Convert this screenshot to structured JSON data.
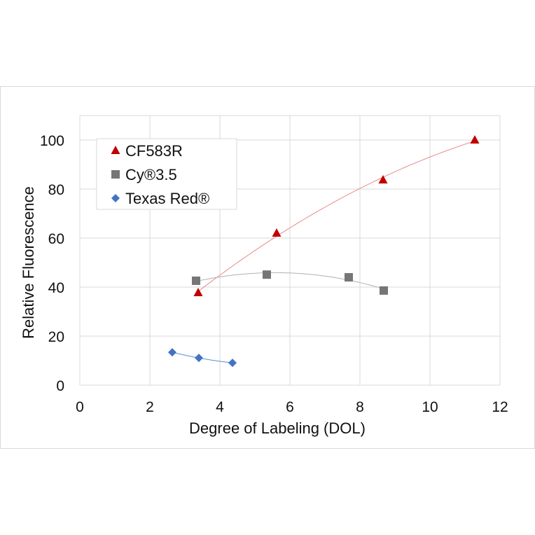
{
  "chart_data": {
    "type": "scatter",
    "xlabel": "Degree of Labeling (DOL)",
    "ylabel": "Relative Fluorescence",
    "xlim": [
      0,
      12
    ],
    "ylim": [
      0,
      110
    ],
    "xticks": [
      0,
      2,
      4,
      6,
      8,
      10,
      12
    ],
    "yticks": [
      0,
      20,
      40,
      60,
      80,
      100
    ],
    "grid": true,
    "legend": "top-left",
    "trendline": "polynomial order 2",
    "series": [
      {
        "name": "CF583R",
        "marker": "triangle",
        "color": "#c00000",
        "line_color": "#e88b8b",
        "x": [
          3.38,
          5.62,
          8.66,
          11.28
        ],
        "y": [
          37.7,
          62,
          83.7,
          100
        ]
      },
      {
        "name": "Cy®3.5",
        "marker": "square",
        "color": "#767676",
        "line_color": "#b0b0b0",
        "x": [
          3.32,
          5.34,
          7.68,
          8.68
        ],
        "y": [
          42.6,
          45.1,
          44,
          38.6
        ]
      },
      {
        "name": "Texas Red®",
        "marker": "diamond",
        "color": "#4472c4",
        "line_color": "#5b8fd0",
        "x": [
          2.64,
          3.4,
          4.36
        ],
        "y": [
          13.4,
          11.1,
          9.1
        ]
      }
    ]
  }
}
